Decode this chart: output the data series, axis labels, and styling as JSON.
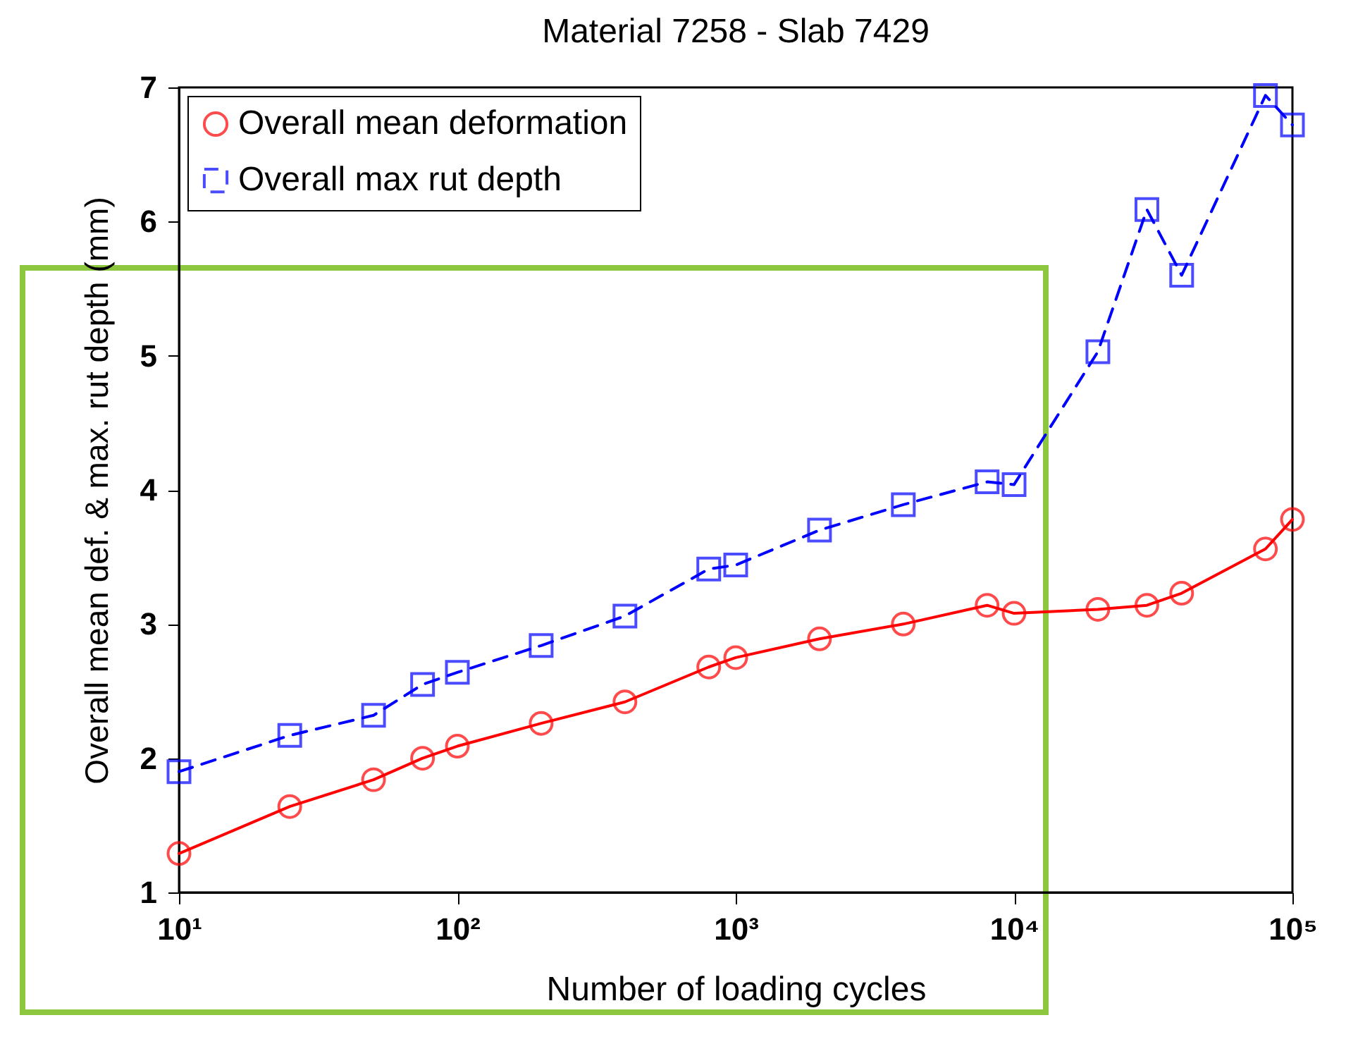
{
  "chart_data": {
    "type": "line",
    "title": "Material 7258 - Slab 7429",
    "xlabel": "Number of loading cycles",
    "ylabel": "Overall mean def. & max. rut depth (mm)",
    "log": "x",
    "xlim": [
      10,
      100000
    ],
    "xticks": [
      {
        "value": 10,
        "label": "10¹"
      },
      {
        "value": 100,
        "label": "10²"
      },
      {
        "value": 1000,
        "label": "10³"
      },
      {
        "value": 10000,
        "label": "10⁴"
      },
      {
        "value": 100000,
        "label": "10⁵"
      }
    ],
    "ylim": [
      1,
      7
    ],
    "yticks": [
      1,
      2,
      3,
      4,
      5,
      6,
      7
    ],
    "grid": false,
    "legend": "top left",
    "marker": "circle",
    "series": [
      {
        "name": "Overall mean deformation",
        "color": "#ff0000",
        "marker": "circle",
        "line_style": "solid",
        "x": [
          10,
          25,
          50,
          75,
          100,
          200,
          400,
          800,
          1000,
          2000,
          4000,
          8000,
          10000,
          20000,
          30000,
          40000,
          80000,
          100000
        ],
        "values": [
          1.29,
          1.64,
          1.84,
          2.0,
          2.09,
          2.26,
          2.42,
          2.68,
          2.75,
          2.89,
          3.0,
          3.14,
          3.08,
          3.11,
          3.14,
          3.23,
          3.56,
          3.78
        ]
      },
      {
        "name": "Overall max rut depth",
        "color": "#0000ff",
        "marker": "square",
        "line_style": "dashed",
        "x": [
          10,
          25,
          50,
          75,
          100,
          200,
          400,
          800,
          1000,
          2000,
          4000,
          8000,
          10000,
          20000,
          30000,
          40000,
          80000,
          100000
        ],
        "values": [
          1.9,
          2.17,
          2.32,
          2.55,
          2.64,
          2.84,
          3.06,
          3.41,
          3.44,
          3.7,
          3.89,
          4.06,
          4.04,
          5.03,
          6.09,
          5.6,
          6.94,
          6.72
        ]
      }
    ]
  }
}
